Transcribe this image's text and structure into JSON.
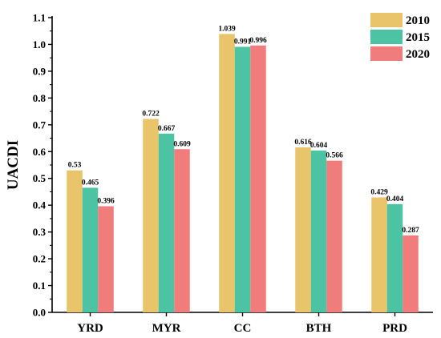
{
  "chart_data": {
    "type": "bar",
    "categories": [
      "YRD",
      "MYR",
      "CC",
      "BTH",
      "PRD"
    ],
    "series": [
      {
        "name": "2010",
        "values": [
          0.53,
          0.722,
          1.039,
          0.616,
          0.429
        ],
        "labels": [
          "0.53",
          "0.722",
          "1.039",
          "0.616",
          "0.429"
        ],
        "color": "#E9C46A"
      },
      {
        "name": "2015",
        "values": [
          0.465,
          0.667,
          0.991,
          0.604,
          0.404
        ],
        "labels": [
          "0.465",
          "0.667",
          "0.991",
          "0.604",
          "0.404"
        ],
        "color": "#4CC3A3"
      },
      {
        "name": "2020",
        "values": [
          0.396,
          0.609,
          0.996,
          0.566,
          0.287
        ],
        "labels": [
          "0.396",
          "0.609",
          "0.996",
          "0.566",
          "0.287"
        ],
        "color": "#F07C7C"
      }
    ],
    "ylabel": "UACDI",
    "xlabel": "",
    "ylim": [
      0,
      1.1
    ],
    "yticks": [
      "0.0",
      "0.1",
      "0.2",
      "0.3",
      "0.4",
      "0.5",
      "0.6",
      "0.7",
      "0.8",
      "0.9",
      "1.0",
      "1.1"
    ],
    "grid": false,
    "legend_position": "top-right"
  }
}
